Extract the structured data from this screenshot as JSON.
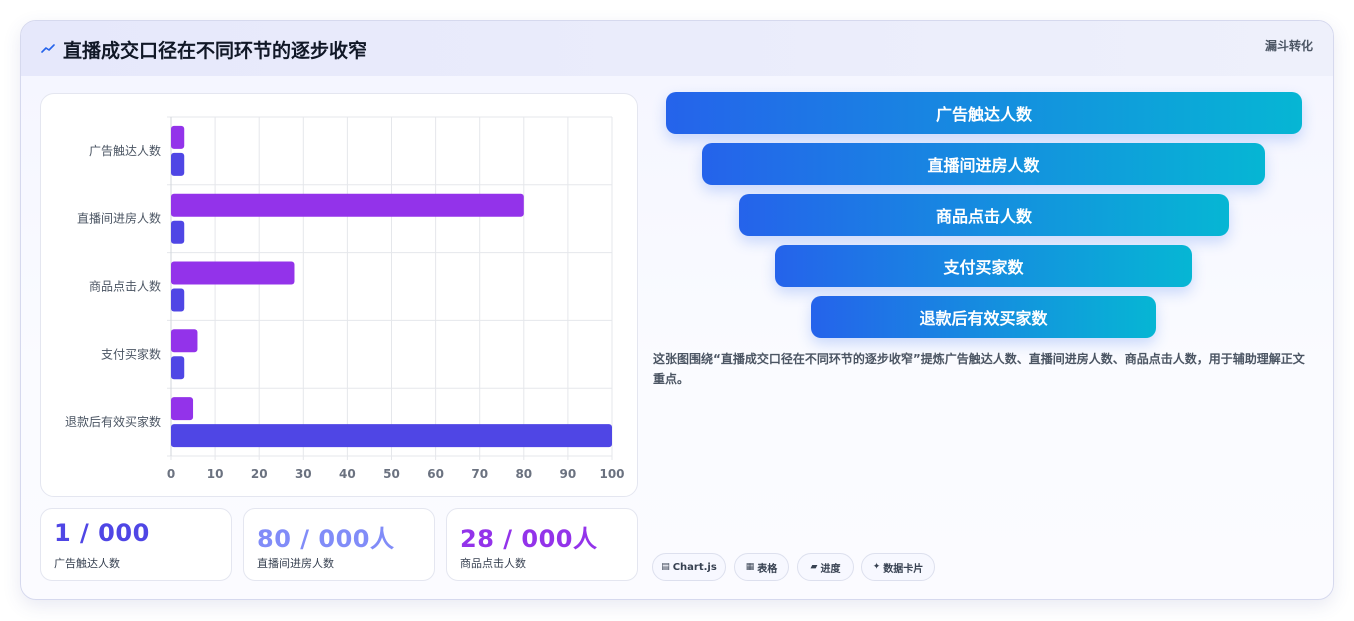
{
  "header": {
    "title": "直播成交口径在不同环节的逐步收窄",
    "tag": "漏斗转化",
    "icon": "trend-line-icon"
  },
  "chart_data": {
    "type": "bar",
    "orientation": "horizontal",
    "categories": [
      "广告触达人数",
      "直播间进房人数",
      "商品点击人数",
      "支付买家数",
      "退款后有效买家数"
    ],
    "series": [
      {
        "color": "#9333ea",
        "values": [
          3,
          80,
          28,
          6,
          5
        ]
      },
      {
        "color": "#4f46e5",
        "values": [
          3,
          3,
          3,
          3,
          100
        ]
      }
    ],
    "x_ticks": [
      "0",
      "10",
      "20",
      "30",
      "40",
      "50",
      "60",
      "70",
      "80",
      "90",
      "100"
    ],
    "xlim": [
      0,
      100
    ],
    "grid": true,
    "legend": "none"
  },
  "stats": [
    {
      "value": "1 / 000",
      "label": "广告触达人数",
      "color": "#4f46e5"
    },
    {
      "value": "80 / 000人",
      "label": "直播间进房人数",
      "color": "#818cf8"
    },
    {
      "value": "28 / 000人",
      "label": "商品点击人数",
      "color": "#9333ea"
    }
  ],
  "funnel": [
    "广告触达人数",
    "直播间进房人数",
    "商品点击人数",
    "支付买家数",
    "退款后有效买家数"
  ],
  "description": "这张图围绕“直播成交口径在不同环节的逐步收窄”提炼广告触达人数、直播间进房人数、商品点击人数，用于辅助理解正文重点。",
  "chips": [
    {
      "icon": "chart-icon",
      "glyph": "▤",
      "label": "Chart.js"
    },
    {
      "icon": "table-icon",
      "glyph": "▦",
      "label": "表格"
    },
    {
      "icon": "progress-icon",
      "glyph": "▰",
      "label": "进度"
    },
    {
      "icon": "sparkle-icon",
      "glyph": "✦",
      "label": "数据卡片"
    }
  ]
}
